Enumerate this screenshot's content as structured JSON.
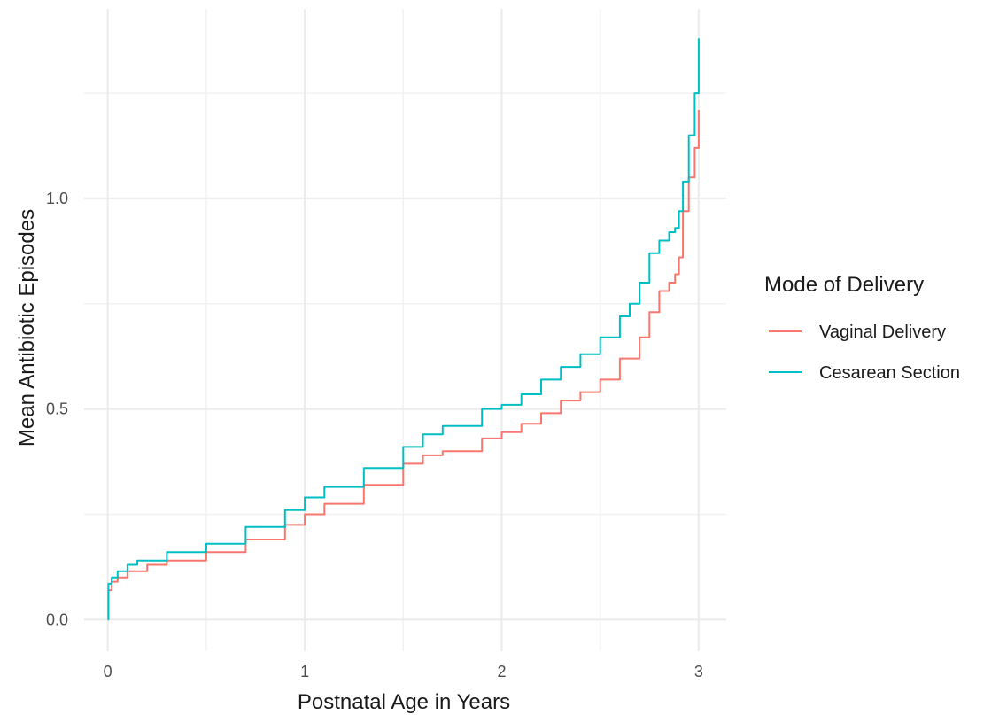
{
  "chart_data": {
    "type": "line",
    "title": "",
    "xlabel": "Postnatal Age in Years",
    "ylabel": "Mean Antibiotic Episodes",
    "xlim": [
      -0.12,
      3.14
    ],
    "ylim": [
      -0.075,
      1.45
    ],
    "x_ticks": [
      0,
      1,
      2,
      3
    ],
    "x_tick_labels": [
      "0",
      "1",
      "2",
      "3"
    ],
    "y_ticks": [
      0.0,
      0.5,
      1.0
    ],
    "y_tick_labels": [
      "0.0",
      "0.5",
      "1.0"
    ],
    "grid": true,
    "legend": {
      "title": "Mode of Delivery",
      "placement": "right",
      "entries": [
        "Vaginal Delivery",
        "Cesarean Section"
      ]
    },
    "series": [
      {
        "name": "Vaginal Delivery",
        "color": "#f8766d",
        "x": [
          0,
          0.003,
          0.02,
          0.05,
          0.1,
          0.2,
          0.3,
          0.5,
          0.7,
          0.9,
          1.0,
          1.1,
          1.3,
          1.5,
          1.6,
          1.7,
          1.9,
          2.0,
          2.1,
          2.2,
          2.3,
          2.4,
          2.5,
          2.6,
          2.7,
          2.75,
          2.8,
          2.85,
          2.88,
          2.9,
          2.92,
          2.95,
          2.98,
          3.0
        ],
        "y": [
          0.0,
          0.07,
          0.09,
          0.1,
          0.115,
          0.13,
          0.14,
          0.16,
          0.19,
          0.225,
          0.25,
          0.275,
          0.32,
          0.37,
          0.39,
          0.4,
          0.43,
          0.445,
          0.465,
          0.49,
          0.52,
          0.54,
          0.57,
          0.62,
          0.67,
          0.73,
          0.78,
          0.8,
          0.82,
          0.86,
          0.97,
          1.05,
          1.12,
          1.21
        ]
      },
      {
        "name": "Cesarean Section",
        "color": "#00bfc4",
        "x": [
          0,
          0.003,
          0.02,
          0.05,
          0.1,
          0.15,
          0.3,
          0.5,
          0.7,
          0.9,
          1.0,
          1.1,
          1.3,
          1.5,
          1.6,
          1.7,
          1.9,
          2.0,
          2.1,
          2.2,
          2.3,
          2.4,
          2.5,
          2.6,
          2.65,
          2.7,
          2.75,
          2.8,
          2.85,
          2.88,
          2.9,
          2.92,
          2.95,
          2.98,
          3.0
        ],
        "y": [
          0.0,
          0.085,
          0.1,
          0.115,
          0.13,
          0.14,
          0.16,
          0.18,
          0.22,
          0.26,
          0.29,
          0.315,
          0.36,
          0.41,
          0.44,
          0.46,
          0.5,
          0.51,
          0.535,
          0.57,
          0.6,
          0.63,
          0.67,
          0.72,
          0.75,
          0.8,
          0.87,
          0.9,
          0.92,
          0.93,
          0.97,
          1.04,
          1.15,
          1.25,
          1.38
        ]
      }
    ]
  }
}
